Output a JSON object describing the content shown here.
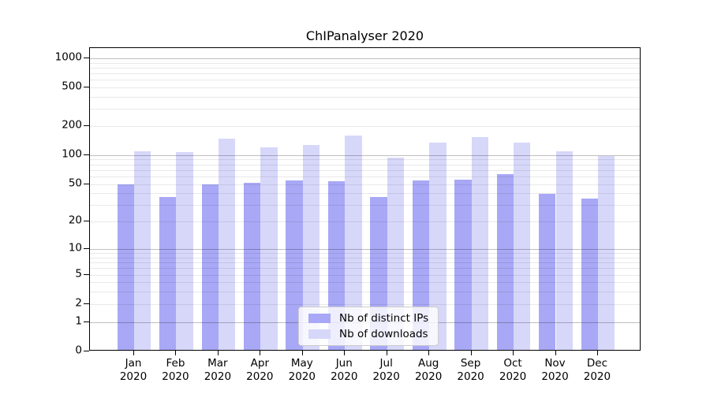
{
  "figure": {
    "background": "#ffffff"
  },
  "chart_data": {
    "type": "bar",
    "title": "ChIPanalyser 2020",
    "categories": [
      "Jan",
      "Feb",
      "Mar",
      "Apr",
      "May",
      "Jun",
      "Jul",
      "Aug",
      "Sep",
      "Oct",
      "Nov",
      "Dec"
    ],
    "category_year": "2020",
    "series": [
      {
        "name": "Nb of distinct IPs",
        "color": "#a8a8f6",
        "values": [
          48,
          35,
          48,
          50,
          52,
          51,
          35,
          52,
          53,
          61,
          38,
          34
        ]
      },
      {
        "name": "Nb of downloads",
        "color": "#d7d7fa",
        "values": [
          105,
          103,
          142,
          115,
          122,
          155,
          91,
          130,
          148,
          130,
          106,
          94
        ]
      }
    ],
    "yscale": "symlog",
    "yticks": [
      0,
      1,
      2,
      5,
      10,
      20,
      50,
      100,
      200,
      500,
      1000
    ],
    "ylim": [
      0,
      1500
    ],
    "grid": "both",
    "legend_position": "lower-center",
    "axis_color": "#000000",
    "grid_major_color": "#c0c0c0",
    "grid_minor_color": "#e8e8e8"
  }
}
